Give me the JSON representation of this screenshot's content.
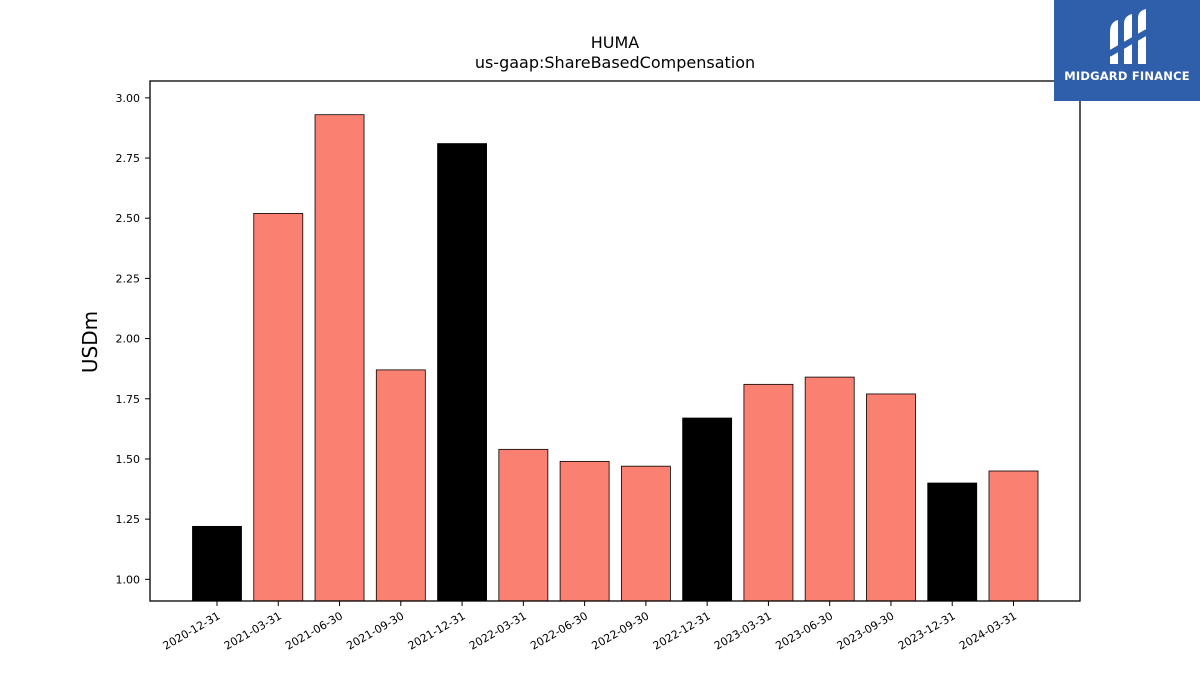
{
  "chart_data": {
    "type": "bar",
    "title": "HUMA",
    "subtitle": "us-gaap:ShareBasedCompensation",
    "xlabel": "",
    "ylabel": "USDm",
    "ylim": [
      0.91,
      3.07
    ],
    "yticks": [
      "1.00",
      "1.25",
      "1.50",
      "1.75",
      "2.00",
      "2.25",
      "2.50",
      "2.75",
      "3.00"
    ],
    "grid": false,
    "categories": [
      "2020-12-31",
      "2021-03-31",
      "2021-06-30",
      "2021-09-30",
      "2021-12-31",
      "2022-03-31",
      "2022-06-30",
      "2022-09-30",
      "2022-12-31",
      "2023-03-31",
      "2023-06-30",
      "2023-09-30",
      "2023-12-31",
      "2024-03-31"
    ],
    "values": [
      1.22,
      2.52,
      2.93,
      1.87,
      2.81,
      1.54,
      1.49,
      1.47,
      1.67,
      1.81,
      1.84,
      1.77,
      1.4,
      1.45
    ],
    "bar_colors": [
      "#000000",
      "#fa8072",
      "#fa8072",
      "#fa8072",
      "#000000",
      "#fa8072",
      "#fa8072",
      "#fa8072",
      "#000000",
      "#fa8072",
      "#fa8072",
      "#fa8072",
      "#000000",
      "#fa8072"
    ]
  },
  "logo": {
    "text": "MIDGARD FINANCE",
    "color": "#2f5eab"
  }
}
